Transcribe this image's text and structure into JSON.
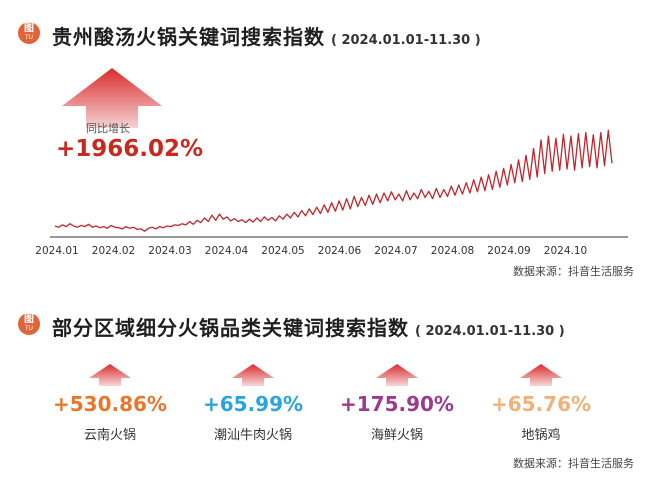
{
  "section1": {
    "logo_char": "图",
    "logo_sub": "TU",
    "title": "贵州酸汤火锅关键词搜索指数",
    "date_range": "( 2024.01.01-11.30 )",
    "yoy_label": "同比增长",
    "yoy_value": "+1966.02%",
    "source": "数据来源：抖音生活服务"
  },
  "section2": {
    "logo_char": "图",
    "logo_sub": "TU",
    "title": "部分区域细分火锅品类关键词搜索指数",
    "date_range": "( 2024.01.01-11.30 )",
    "source": "数据来源：抖音生活服务",
    "items": [
      {
        "pct": "+530.86%",
        "name": "云南火锅",
        "color": "#e8762d"
      },
      {
        "pct": "+65.99%",
        "name": "潮汕牛肉火锅",
        "color": "#2aa4dc"
      },
      {
        "pct": "+175.90%",
        "name": "海鲜火锅",
        "color": "#9b3a8e"
      },
      {
        "pct": "+65.76%",
        "name": "地锅鸡",
        "color": "#f0b27a"
      }
    ]
  },
  "colors": {
    "line": "#c0272d",
    "arrow_top": "#d92c2c",
    "arrow_bottom": "#f5d3d3",
    "logo": "#e0643a"
  },
  "chart_data": {
    "type": "line",
    "x_ticks": [
      "2024.01",
      "2024.02",
      "2024.03",
      "2024.04",
      "2024.05",
      "2024.06",
      "2024.07",
      "2024.08",
      "2024.09",
      "2024.10"
    ],
    "grid": false,
    "series": [
      {
        "values": [
          14,
          12,
          16,
          13,
          18,
          14,
          12,
          15,
          13,
          17,
          12,
          14,
          11,
          13,
          10,
          15,
          12,
          11,
          9,
          13,
          10,
          12,
          8,
          9,
          5,
          10,
          12,
          9,
          13,
          11,
          14,
          13,
          16,
          15,
          18,
          16,
          22,
          17,
          24,
          20,
          28,
          22,
          33,
          24,
          35,
          26,
          30,
          23,
          27,
          22,
          25,
          20,
          26,
          21,
          28,
          22,
          30,
          24,
          29,
          23,
          32,
          26,
          35,
          28,
          38,
          30,
          41,
          32,
          44,
          34,
          47,
          36,
          51,
          38,
          55,
          40,
          58,
          42,
          62,
          44,
          66,
          48,
          64,
          50,
          68,
          52,
          70,
          55,
          72,
          58,
          74,
          60,
          70,
          58,
          76,
          60,
          72,
          62,
          78,
          64,
          75,
          62,
          80,
          64,
          78,
          66,
          84,
          68,
          86,
          70,
          90,
          72,
          95,
          74,
          100,
          76,
          104,
          78,
          110,
          82,
          115,
          86,
          122,
          90,
          130,
          92,
          138,
          96,
          150,
          100,
          165,
          106,
          172,
          110,
          168,
          112,
          175,
          114,
          172,
          112,
          176,
          116,
          178,
          118,
          174,
          116,
          178,
          120,
          182,
          124
        ]
      }
    ]
  }
}
